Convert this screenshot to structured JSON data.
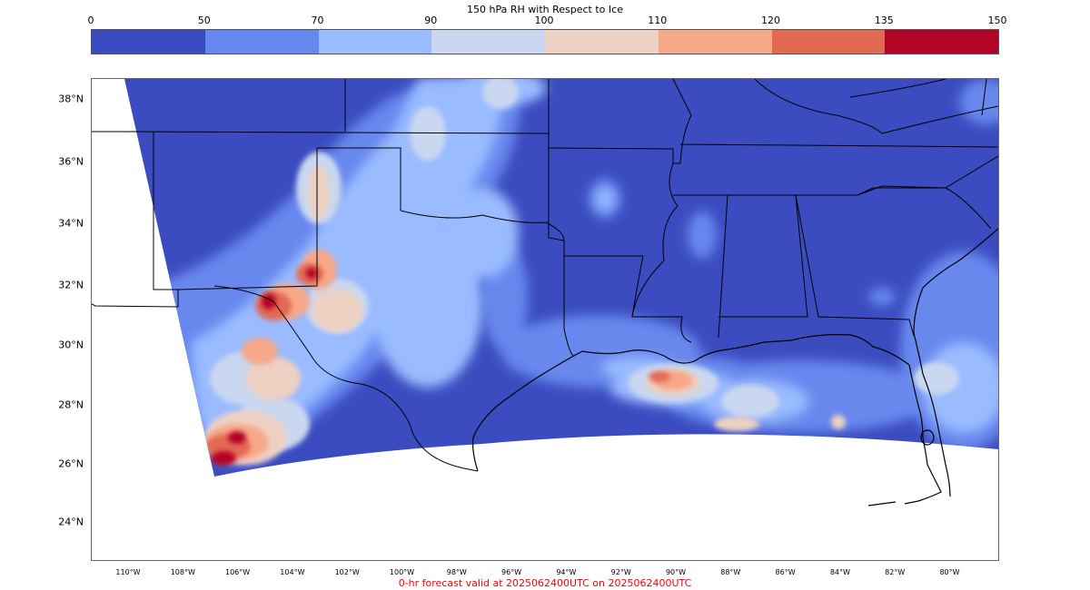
{
  "colorbar": {
    "title": "150 hPa RH with Respect to Ice",
    "ticks": [
      "0",
      "50",
      "70",
      "90",
      "100",
      "110",
      "120",
      "135",
      "150"
    ],
    "colors": [
      "#3b4cc0",
      "#6788ee",
      "#9abbff",
      "#c9d7f0",
      "#edd1c2",
      "#f7a889",
      "#e26952",
      "#b40426"
    ]
  },
  "map": {
    "lat_labels": [
      "38°N",
      "36°N",
      "34°N",
      "32°N",
      "30°N",
      "28°N",
      "26°N",
      "24°N"
    ],
    "lon_labels": [
      "110°W",
      "108°W",
      "106°W",
      "104°W",
      "102°W",
      "100°W",
      "98°W",
      "96°W",
      "94°W",
      "92°W",
      "90°W",
      "88°W",
      "86°W",
      "84°W",
      "82°W",
      "80°W"
    ],
    "colors": {
      "background": "#3b4cc0",
      "ocean_blank": "#ffffff",
      "border_line": "#000000"
    }
  },
  "footer": {
    "valid_text": "0-hr forecast valid at 2025062400UTC on 2025062400UTC",
    "color": "#ff0000"
  }
}
